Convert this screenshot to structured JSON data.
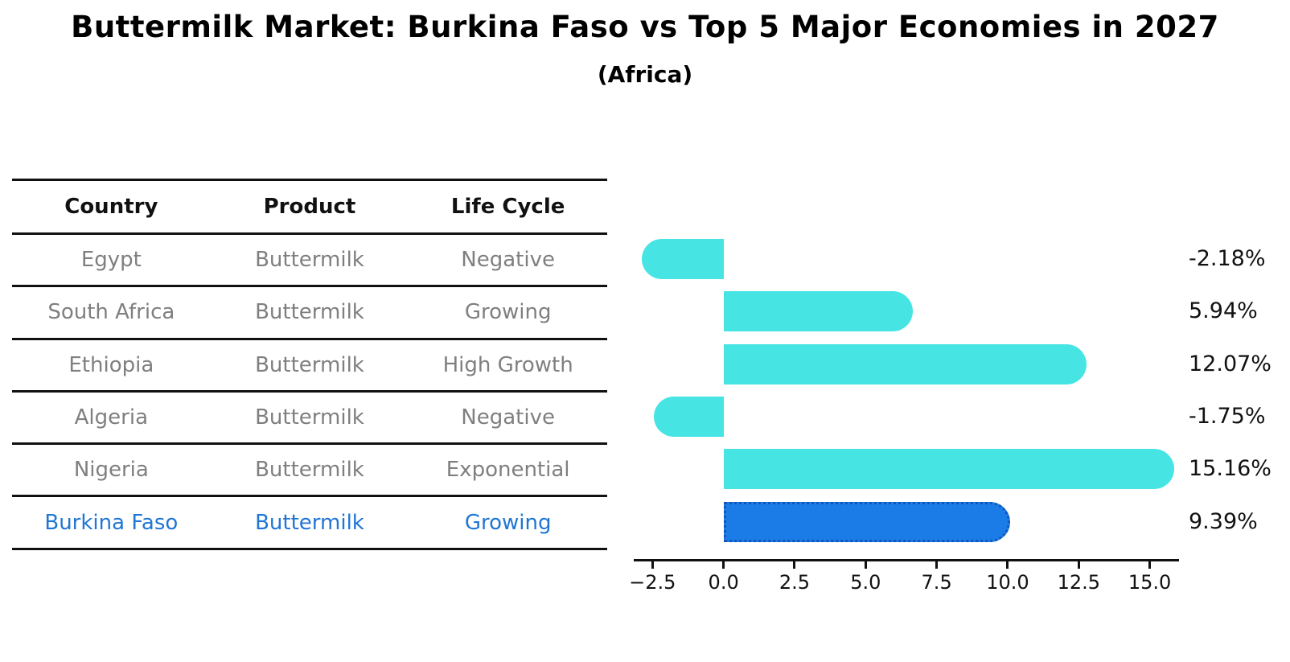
{
  "title": "Buttermilk Market: Burkina Faso vs Top 5 Major Economies in 2027",
  "subtitle": "(Africa)",
  "table": {
    "headers": [
      "Country",
      "Product",
      "Life Cycle"
    ],
    "rows": [
      {
        "country": "Egypt",
        "product": "Buttermilk",
        "life_cycle": "Negative",
        "highlight": false
      },
      {
        "country": "South Africa",
        "product": "Buttermilk",
        "life_cycle": "Growing",
        "highlight": false
      },
      {
        "country": "Ethiopia",
        "product": "Buttermilk",
        "life_cycle": "High Growth",
        "highlight": false
      },
      {
        "country": "Algeria",
        "product": "Buttermilk",
        "life_cycle": "Negative",
        "highlight": false
      },
      {
        "country": "Nigeria",
        "product": "Buttermilk",
        "life_cycle": "Exponential",
        "highlight": false
      },
      {
        "country": "Burkina Faso",
        "product": "Buttermilk",
        "life_cycle": "Growing",
        "highlight": true
      }
    ]
  },
  "chart_data": {
    "type": "bar",
    "orientation": "horizontal",
    "title": "Buttermilk Market: Burkina Faso vs Top 5 Major Economies in 2027 (Africa)",
    "categories": [
      "Egypt",
      "South Africa",
      "Ethiopia",
      "Algeria",
      "Nigeria",
      "Burkina Faso"
    ],
    "values": [
      -2.18,
      5.94,
      12.07,
      -1.75,
      15.16,
      9.39
    ],
    "value_labels": [
      "-2.18%",
      "5.94%",
      "12.07%",
      "-1.75%",
      "15.16%",
      "9.39%"
    ],
    "unit": "percent",
    "xlim": [
      -3.16,
      16.03
    ],
    "xticks": [
      -2.5,
      0.0,
      2.5,
      5.0,
      7.5,
      10.0,
      12.5,
      15.0
    ],
    "xtick_labels": [
      "−2.5",
      "0.0",
      "2.5",
      "5.0",
      "7.5",
      "10.0",
      "12.5",
      "15.0"
    ],
    "grid": false,
    "legend": false,
    "highlight_index": 5
  },
  "colors": {
    "bar": "#47e4e4",
    "highlight_bar": "#1b7ce8",
    "highlight_bar_border": "#1456b8",
    "highlight_text": "#1f76d4",
    "row_text": "#7f7f7f",
    "axis": "#111111"
  }
}
